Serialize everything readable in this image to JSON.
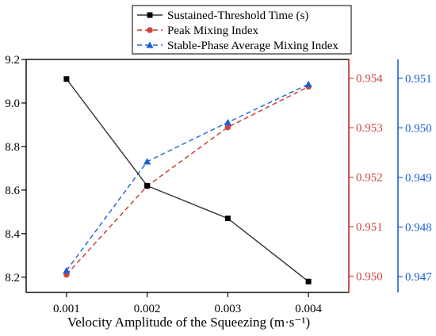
{
  "chart_data": {
    "type": "line",
    "xlabel": "Velocity Amplitude of the Squeezing (m·s⁻¹)",
    "x": [
      0.001,
      0.002,
      0.003,
      0.004
    ],
    "x_ticks": [
      "0.001",
      "0.002",
      "0.003",
      "0.004"
    ],
    "xlim": [
      0.0005,
      0.0045
    ],
    "axes": {
      "left": {
        "ylim": [
          8.13,
          9.2
        ],
        "ticks": [
          8.2,
          8.4,
          8.6,
          8.8,
          9.0,
          9.2
        ],
        "tick_labels": [
          "8.2",
          "8.4",
          "8.6",
          "8.8",
          "9.0",
          "9.2"
        ],
        "color": "#000000"
      },
      "right1": {
        "ylim": [
          0.94967,
          0.95438
        ],
        "ticks": [
          0.95,
          0.951,
          0.952,
          0.953,
          0.954
        ],
        "tick_labels": [
          "0.950",
          "0.951",
          "0.952",
          "0.953",
          "0.954"
        ],
        "color": "#d0443c"
      },
      "right2": {
        "ylim": [
          0.94668,
          0.95138
        ],
        "ticks": [
          0.947,
          0.948,
          0.949,
          0.95,
          0.951
        ],
        "tick_labels": [
          "0.947",
          "0.948",
          "0.949",
          "0.950",
          "0.951"
        ],
        "color": "#1f5fd6"
      }
    },
    "series": [
      {
        "name": "Sustained-Threshold Time (s)",
        "axis": "left",
        "values": [
          9.11,
          8.62,
          8.47,
          8.18
        ],
        "color": "#000000",
        "line_color": "#333333",
        "dash": "solid",
        "marker": "square"
      },
      {
        "name": "Peak Mixing Index",
        "axis": "right1",
        "values": [
          0.95003,
          0.95182,
          0.95301,
          0.95383
        ],
        "color": "#d0443c",
        "line_color": "#c0392b",
        "dash": "dashed",
        "marker": "circle"
      },
      {
        "name": "Stable-Phase Average Mixing Index",
        "axis": "right2",
        "values": [
          0.94712,
          0.94932,
          0.95011,
          0.95088
        ],
        "color": "#1f5fd6",
        "line_color": "#1f5fd6",
        "dash": "dashed",
        "marker": "triangle"
      }
    ],
    "legend": "top-right"
  }
}
